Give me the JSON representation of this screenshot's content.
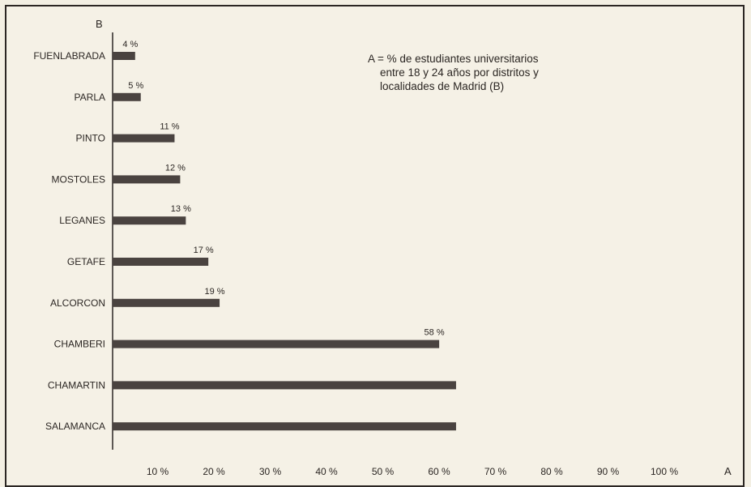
{
  "chart_data": {
    "type": "bar",
    "orientation": "horizontal",
    "categories": [
      "FUENLABRADA",
      "PARLA",
      "PINTO",
      "MOSTOLES",
      "LEGANES",
      "GETAFE",
      "ALCORCON",
      "CHAMBERI",
      "CHAMARTIN",
      "SALAMANCA"
    ],
    "values": [
      4,
      5,
      11,
      12,
      13,
      17,
      19,
      58,
      61,
      61
    ],
    "value_labels": [
      "4 %",
      "5 %",
      "11 %",
      "12 %",
      "13 %",
      "17 %",
      "19 %",
      "58 %",
      "",
      ""
    ],
    "x_ticks": [
      "10 %",
      "20 %",
      "30 %",
      "40 %",
      "50 %",
      "60 %",
      "70 %",
      "80 %",
      "90 %",
      "100 %"
    ],
    "x_tick_values": [
      10,
      20,
      30,
      40,
      50,
      60,
      70,
      80,
      90,
      100
    ],
    "xlim": [
      0,
      100
    ],
    "xlabel": "A",
    "ylabel": "B",
    "legend_text": [
      "A = % de estudiantes universitarios",
      "entre 18 y 24 años por distritos y",
      "localidades de Madrid (B)"
    ],
    "legend_placement": "top-right",
    "grid": false,
    "colors": {
      "bar": "#4a4340",
      "text": "#2b2623",
      "background": "#f5f1e6"
    }
  }
}
